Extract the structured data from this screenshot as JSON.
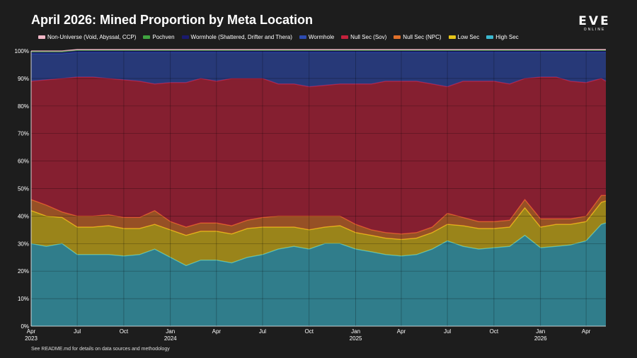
{
  "header": {
    "title": "April 2026: Mined Proportion by Meta Location",
    "logo_main": "EVE",
    "logo_sub": "ONLINE"
  },
  "footer": {
    "note": "See README.md for details on data sources and methodology"
  },
  "chart_data": {
    "type": "area",
    "stacked": true,
    "title": "April 2026: Mined Proportion by Meta Location",
    "xlabel": "",
    "ylabel": "",
    "ylim": [
      0,
      100
    ],
    "yticks": [
      0,
      10,
      20,
      30,
      40,
      50,
      60,
      70,
      80,
      90,
      100
    ],
    "ytick_labels": [
      "0%",
      "10%",
      "20%",
      "30%",
      "40%",
      "50%",
      "60%",
      "70%",
      "80%",
      "90%",
      "100%"
    ],
    "x_range": [
      "2023-04-01",
      "2026-05-10"
    ],
    "xticks": [
      {
        "date": "2023-04-01",
        "label": "Apr",
        "year": "2023"
      },
      {
        "date": "2023-07-01",
        "label": "Jul",
        "year": ""
      },
      {
        "date": "2023-10-01",
        "label": "Oct",
        "year": ""
      },
      {
        "date": "2024-01-01",
        "label": "Jan",
        "year": "2024"
      },
      {
        "date": "2024-04-01",
        "label": "Apr",
        "year": ""
      },
      {
        "date": "2024-07-01",
        "label": "Jul",
        "year": ""
      },
      {
        "date": "2024-10-01",
        "label": "Oct",
        "year": ""
      },
      {
        "date": "2025-01-01",
        "label": "Jan",
        "year": "2025"
      },
      {
        "date": "2025-04-01",
        "label": "Apr",
        "year": ""
      },
      {
        "date": "2025-07-01",
        "label": "Jul",
        "year": ""
      },
      {
        "date": "2025-10-01",
        "label": "Oct",
        "year": ""
      },
      {
        "date": "2026-01-01",
        "label": "Jan",
        "year": "2026"
      },
      {
        "date": "2026-04-01",
        "label": "Apr",
        "year": ""
      }
    ],
    "grid": true,
    "legend_position": "top",
    "x": [
      "2023-04-01",
      "2023-05-01",
      "2023-06-01",
      "2023-07-01",
      "2023-08-01",
      "2023-09-01",
      "2023-10-01",
      "2023-11-01",
      "2023-12-01",
      "2024-01-01",
      "2024-02-01",
      "2024-03-01",
      "2024-04-01",
      "2024-05-01",
      "2024-06-01",
      "2024-07-01",
      "2024-08-01",
      "2024-09-01",
      "2024-10-01",
      "2024-11-01",
      "2024-12-01",
      "2025-01-01",
      "2025-02-01",
      "2025-03-01",
      "2025-04-01",
      "2025-05-01",
      "2025-06-01",
      "2025-07-01",
      "2025-08-01",
      "2025-09-01",
      "2025-10-01",
      "2025-11-01",
      "2025-12-01",
      "2026-01-01",
      "2026-02-01",
      "2026-03-01",
      "2026-04-01",
      "2026-05-01",
      "2026-05-10"
    ],
    "series": [
      {
        "name": "High Sec",
        "color": "#3bb8cf",
        "values": [
          30,
          29,
          30,
          26,
          26,
          26,
          25.5,
          26,
          28,
          25,
          22,
          24,
          24,
          23,
          25,
          26,
          28,
          29,
          28,
          30,
          30,
          28,
          27,
          26,
          25.5,
          26,
          28,
          31,
          29,
          28,
          28.5,
          29,
          33,
          28.5,
          29,
          29.5,
          31,
          37,
          37.5
        ]
      },
      {
        "name": "Low Sec",
        "color": "#e6c418",
        "values": [
          12,
          11,
          9.5,
          10,
          10,
          10.5,
          10,
          9.5,
          9,
          10,
          11,
          10.5,
          10.5,
          10.5,
          10.5,
          10,
          8,
          7,
          7,
          6,
          6.5,
          6,
          6,
          6,
          6,
          6,
          6,
          6,
          7.5,
          7.5,
          7,
          7,
          10,
          7.5,
          8,
          7.5,
          7,
          8,
          8
        ]
      },
      {
        "name": "Null Sec (NPC)",
        "color": "#e0702a",
        "values": [
          4,
          4,
          2,
          4,
          4,
          4,
          4,
          4,
          5,
          3,
          3,
          3,
          3,
          3,
          3,
          3.5,
          4,
          4,
          5,
          4,
          3.5,
          3,
          2,
          2,
          2,
          2,
          2,
          4,
          3,
          2.5,
          2.5,
          2.5,
          3,
          3,
          2,
          2,
          2,
          2.5,
          2
        ]
      },
      {
        "name": "Null Sec (Sov)",
        "color": "#c5213c",
        "values": [
          43,
          45.5,
          48.5,
          50.5,
          50.5,
          49.5,
          50,
          49.5,
          46,
          50.5,
          52.5,
          52.5,
          51.5,
          53.5,
          51.5,
          50.5,
          48,
          48,
          47,
          47.5,
          48,
          51,
          53,
          55,
          55.5,
          55,
          52,
          46,
          49.5,
          51,
          51,
          49.5,
          44,
          51.5,
          51.5,
          50,
          48.5,
          42.5,
          41.5
        ]
      },
      {
        "name": "Wormhole",
        "color": "#2d4bb0",
        "values": [
          10,
          9.5,
          9,
          9,
          9,
          9.5,
          10,
          10.5,
          11.5,
          11,
          11,
          9.5,
          10.5,
          9.5,
          9.5,
          9.5,
          11.5,
          11.5,
          12.5,
          12,
          11.5,
          11.5,
          11.5,
          10.5,
          10.5,
          10.5,
          11.5,
          12.5,
          10.5,
          10.5,
          10.5,
          11.5,
          9.5,
          9,
          9,
          10.5,
          11,
          9.5,
          10.5
        ]
      },
      {
        "name": "Wormhole (Shattered, Drifter and Thera)",
        "color": "#1a1a6e",
        "values": [
          0.5,
          0.5,
          0.5,
          0.5,
          0.5,
          0.5,
          0.5,
          0.5,
          0.5,
          0.5,
          0.5,
          0.5,
          0.5,
          0.5,
          0.5,
          0.5,
          0.5,
          0.5,
          0.5,
          0.5,
          0.5,
          0.5,
          0.5,
          0.5,
          0.5,
          0.5,
          0.5,
          0.5,
          0.5,
          0.5,
          0.5,
          0.5,
          0.5,
          0.5,
          0.5,
          0.5,
          0.5,
          0.5,
          0.5
        ]
      },
      {
        "name": "Pochven",
        "color": "#3fa33f",
        "values": [
          0.3,
          0.3,
          0.3,
          0.3,
          0.3,
          0.3,
          0.3,
          0.3,
          0.3,
          0.3,
          0.3,
          0.3,
          0.3,
          0.3,
          0.3,
          0.3,
          0.3,
          0.3,
          0.3,
          0.3,
          0.3,
          0.3,
          0.3,
          0.3,
          0.3,
          0.3,
          0.3,
          0.3,
          0.3,
          0.3,
          0.3,
          0.3,
          0.3,
          0.3,
          0.3,
          0.3,
          0.3,
          0.3,
          0.3
        ]
      },
      {
        "name": "Non-Universe (Void, Abyssal, CCP)",
        "color": "#f0b7c6",
        "values": [
          0.2,
          0.2,
          0.2,
          0.2,
          0.2,
          0.2,
          0.2,
          0.2,
          0.2,
          0.2,
          0.2,
          0.2,
          0.2,
          0.2,
          0.2,
          0.2,
          0.2,
          0.2,
          0.2,
          0.2,
          0.2,
          0.2,
          0.2,
          0.2,
          0.2,
          0.2,
          0.2,
          0.2,
          0.2,
          0.2,
          0.2,
          0.2,
          0.2,
          0.2,
          0.2,
          0.2,
          0.2,
          0.2,
          0.2
        ]
      }
    ]
  }
}
